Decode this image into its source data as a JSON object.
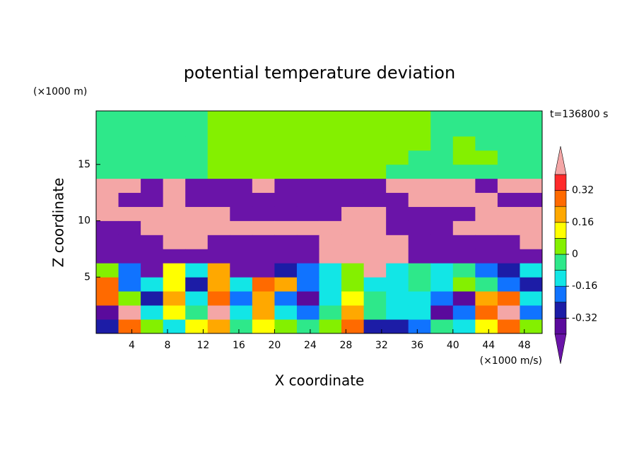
{
  "chart_data": {
    "type": "contour",
    "title": "potential temperature deviation",
    "x_label": "X coordinate",
    "y_label": "Z coordinate",
    "x_unit": "(×1000 m/s)",
    "y_unit": "(×1000 m)",
    "time_label": "t=136800 s",
    "xlim": [
      0,
      50
    ],
    "ylim": [
      0,
      19.75
    ],
    "xticks": [
      4,
      8,
      12,
      16,
      20,
      24,
      28,
      32,
      36,
      40,
      44,
      48
    ],
    "yticks": [
      5,
      10,
      15
    ],
    "levels": [
      -0.4,
      -0.32,
      -0.24,
      -0.16,
      -0.08,
      0,
      0.08,
      0.16,
      0.24,
      0.32,
      0.4
    ],
    "colors": [
      "#6a14a8",
      "#5a0a9c",
      "#1c1ca6",
      "#1073ff",
      "#12e6e6",
      "#2ee88a",
      "#84f000",
      "#ffff00",
      "#ffa800",
      "#ff6a00",
      "#ff2a2a",
      "#f4a6a6"
    ],
    "colorbar_ticks": [
      -0.32,
      -0.16,
      0,
      0.16,
      0.32
    ],
    "x": [
      1.25,
      3.75,
      6.25,
      8.75,
      11.25,
      13.75,
      16.25,
      18.75,
      21.25,
      23.75,
      26.25,
      28.75,
      31.25,
      33.75,
      36.25,
      38.75,
      41.25,
      43.75,
      46.25,
      48.75
    ],
    "y": [
      19.35,
      18.1,
      16.85,
      15.6,
      14.35,
      13.1,
      11.85,
      10.6,
      9.35,
      8.1,
      6.85,
      5.6,
      4.35,
      3.1,
      1.85,
      0.6
    ],
    "z": [
      [
        -0.04,
        -0.04,
        -0.04,
        -0.04,
        -0.04,
        0.04,
        0.04,
        0.04,
        0.04,
        0.04,
        0.04,
        0.04,
        0.04,
        0.04,
        0.04,
        -0.04,
        -0.04,
        -0.04,
        -0.04,
        -0.04
      ],
      [
        -0.04,
        -0.04,
        -0.04,
        -0.04,
        -0.04,
        0.04,
        0.04,
        0.04,
        0.04,
        0.04,
        0.04,
        0.04,
        0.04,
        0.04,
        0.04,
        -0.04,
        -0.04,
        -0.04,
        -0.04,
        -0.04
      ],
      [
        -0.04,
        -0.04,
        -0.04,
        -0.04,
        -0.04,
        0.04,
        0.04,
        0.04,
        0.04,
        0.04,
        0.04,
        0.04,
        0.04,
        0.04,
        0.04,
        -0.04,
        0.04,
        -0.04,
        -0.04,
        -0.04
      ],
      [
        -0.04,
        -0.04,
        -0.04,
        -0.04,
        -0.04,
        0.04,
        0.04,
        0.04,
        0.04,
        0.04,
        0.04,
        0.04,
        0.04,
        0.04,
        -0.04,
        -0.04,
        0.04,
        0.04,
        -0.04,
        -0.04
      ],
      [
        -0.04,
        -0.04,
        -0.04,
        -0.04,
        -0.04,
        0.04,
        0.04,
        0.04,
        0.04,
        0.04,
        0.04,
        0.04,
        0.04,
        -0.04,
        -0.04,
        -0.04,
        -0.04,
        -0.04,
        -0.04,
        -0.04
      ],
      [
        0.45,
        0.45,
        -0.45,
        0.45,
        -0.45,
        -0.45,
        -0.45,
        0.45,
        -0.45,
        -0.45,
        -0.45,
        -0.45,
        -0.45,
        0.45,
        0.45,
        0.45,
        0.45,
        -0.45,
        0.45,
        0.45
      ],
      [
        0.45,
        -0.45,
        -0.45,
        0.45,
        -0.45,
        -0.45,
        -0.45,
        -0.45,
        -0.45,
        -0.45,
        -0.45,
        -0.45,
        -0.45,
        -0.45,
        0.45,
        0.45,
        0.45,
        0.45,
        -0.45,
        -0.45
      ],
      [
        0.45,
        0.45,
        0.45,
        0.45,
        0.45,
        0.45,
        -0.45,
        -0.45,
        -0.45,
        -0.45,
        -0.45,
        0.45,
        0.45,
        -0.45,
        -0.45,
        -0.45,
        -0.45,
        0.45,
        0.45,
        0.45
      ],
      [
        -0.45,
        -0.45,
        0.45,
        0.45,
        0.45,
        0.45,
        0.45,
        0.45,
        0.45,
        0.45,
        0.45,
        0.45,
        0.45,
        -0.45,
        -0.45,
        -0.45,
        0.45,
        0.45,
        0.45,
        0.45
      ],
      [
        -0.45,
        -0.45,
        -0.45,
        0.45,
        0.45,
        -0.45,
        -0.45,
        -0.45,
        -0.45,
        -0.45,
        0.45,
        0.45,
        0.45,
        0.45,
        -0.45,
        -0.45,
        -0.45,
        -0.45,
        -0.45,
        0.45
      ],
      [
        -0.45,
        -0.45,
        -0.45,
        -0.45,
        -0.45,
        -0.45,
        -0.45,
        -0.45,
        -0.45,
        -0.45,
        0.45,
        0.45,
        0.45,
        0.45,
        -0.45,
        -0.45,
        -0.45,
        -0.45,
        -0.45,
        -0.45
      ],
      [
        0.04,
        -0.2,
        -0.45,
        0.1,
        -0.1,
        0.2,
        -0.45,
        -0.45,
        -0.3,
        -0.2,
        -0.1,
        0.04,
        0.45,
        -0.12,
        -0.04,
        -0.12,
        -0.04,
        -0.2,
        -0.3,
        -0.12
      ],
      [
        0.3,
        -0.2,
        -0.12,
        0.1,
        -0.3,
        0.2,
        -0.12,
        0.3,
        0.2,
        -0.2,
        -0.12,
        0.04,
        -0.12,
        -0.12,
        -0.04,
        -0.12,
        0.04,
        -0.04,
        -0.2,
        -0.3
      ],
      [
        0.3,
        0.04,
        -0.3,
        0.2,
        -0.12,
        0.3,
        -0.2,
        0.2,
        -0.2,
        -0.36,
        -0.12,
        0.12,
        -0.04,
        -0.12,
        -0.12,
        -0.2,
        -0.36,
        0.2,
        0.3,
        -0.12
      ],
      [
        -0.36,
        0.45,
        -0.12,
        0.1,
        -0.04,
        0.45,
        -0.12,
        0.2,
        -0.12,
        -0.2,
        -0.04,
        0.2,
        -0.04,
        -0.12,
        -0.12,
        -0.36,
        -0.2,
        0.3,
        0.45,
        -0.2
      ],
      [
        -0.3,
        0.3,
        0.04,
        -0.12,
        0.1,
        0.2,
        -0.04,
        0.1,
        0.04,
        -0.04,
        0.04,
        0.3,
        -0.3,
        -0.3,
        -0.2,
        -0.04,
        -0.12,
        0.1,
        0.3,
        0.04
      ]
    ]
  }
}
